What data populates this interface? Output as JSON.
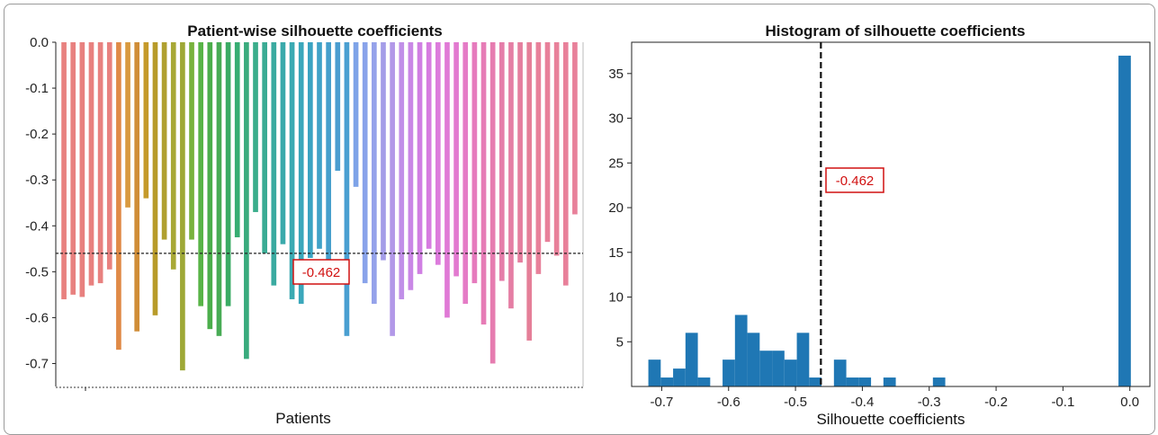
{
  "chart_data": [
    {
      "type": "bar",
      "title": "Patient-wise silhouette coefficients",
      "xlabel": "Patients",
      "ylabel": "",
      "ylim": [
        -0.75,
        0.0
      ],
      "yticks": [
        "0.0",
        "-0.1",
        "-0.2",
        "-0.3",
        "-0.4",
        "-0.5",
        "-0.6",
        "-0.7"
      ],
      "values": [
        -0.56,
        -0.55,
        -0.555,
        -0.53,
        -0.525,
        -0.495,
        -0.67,
        -0.36,
        -0.63,
        -0.34,
        -0.595,
        -0.43,
        -0.495,
        -0.715,
        -0.43,
        -0.575,
        -0.625,
        -0.64,
        -0.575,
        -0.425,
        -0.69,
        -0.37,
        -0.46,
        -0.53,
        -0.44,
        -0.56,
        -0.57,
        -0.47,
        -0.45,
        -0.5,
        -0.28,
        -0.64,
        -0.315,
        -0.525,
        -0.57,
        -0.475,
        -0.64,
        -0.56,
        -0.54,
        -0.505,
        -0.45,
        -0.485,
        -0.6,
        -0.51,
        -0.57,
        -0.525,
        -0.615,
        -0.7,
        -0.52,
        -0.58,
        -0.48,
        -0.65,
        -0.505,
        -0.435,
        -0.465,
        -0.53,
        -0.375
      ],
      "colors": [
        "#e8817f",
        "#e8817f",
        "#e8817f",
        "#e8817f",
        "#e8817f",
        "#e8817f",
        "#e08a47",
        "#d99a3e",
        "#d08d37",
        "#c59a2a",
        "#b89b2a",
        "#b0a030",
        "#a8a836",
        "#9ea836",
        "#78b23c",
        "#58b447",
        "#4cae4c",
        "#48ab55",
        "#3aab64",
        "#37ad72",
        "#39ab7d",
        "#3aad8b",
        "#3aab94",
        "#3aaaa0",
        "#3aaaab",
        "#3aaab2",
        "#3aa7bb",
        "#3aa3c2",
        "#40a2c8",
        "#459fcc",
        "#4a9dd0",
        "#4a9fd1",
        "#7ea3e8",
        "#89a3ea",
        "#95a2ea",
        "#a49de8",
        "#b298e8",
        "#c08fe8",
        "#c987e6",
        "#d07fe3",
        "#d67ce0",
        "#dc7bdc",
        "#e07ad6",
        "#e27ad0",
        "#e57bc6",
        "#e67bbd",
        "#e67cb6",
        "#e67cb0",
        "#e57da9",
        "#e57ea4",
        "#e57e9e",
        "#e57f98",
        "#e8809a",
        "#e8809a",
        "#e8809a",
        "#e8809a",
        "#e8809a"
      ],
      "reference_line": -0.46,
      "annotation": "-0.462"
    },
    {
      "type": "bar",
      "title": "Histogram of silhouette coefficients",
      "xlabel": "Silhouette coefficients",
      "ylabel": "",
      "xlim": [
        -0.745,
        0.03
      ],
      "ylim": [
        0,
        38.5
      ],
      "xticks": [
        "-0.7",
        "-0.6",
        "-0.5",
        "-0.4",
        "-0.3",
        "-0.2",
        "-0.1",
        "0.0"
      ],
      "yticks": [
        "5",
        "10",
        "15",
        "20",
        "25",
        "30",
        "35"
      ],
      "bin_start": -0.72,
      "bin_width": 0.0185,
      "values": [
        3,
        1,
        2,
        6,
        1,
        0,
        3,
        8,
        6,
        4,
        4,
        3,
        6,
        1,
        0,
        3,
        1,
        1,
        0,
        1,
        0,
        0,
        0,
        1,
        0,
        0,
        0,
        0,
        0,
        0,
        0,
        0,
        0,
        0,
        0,
        0,
        0,
        0,
        37
      ],
      "color": "#1f77b4",
      "reference_line": -0.462,
      "annotation": "-0.462"
    }
  ]
}
